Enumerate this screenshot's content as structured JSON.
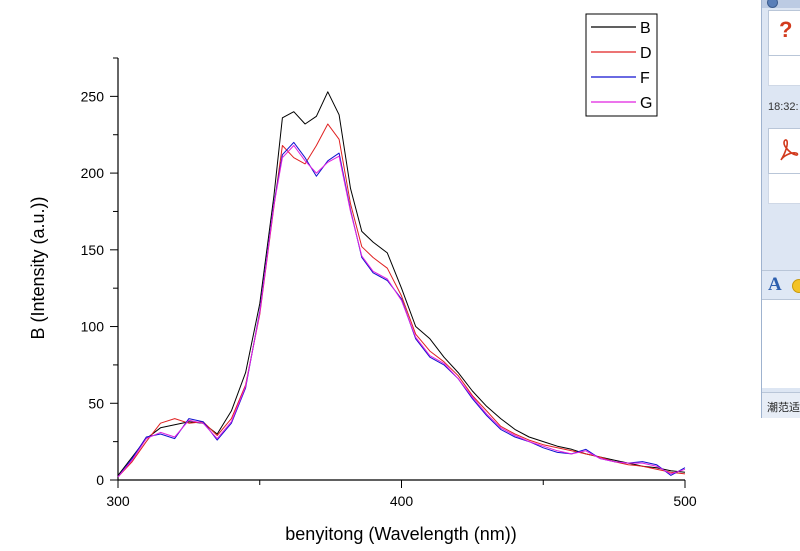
{
  "chart_data": {
    "type": "line",
    "xlabel": "benyitong (Wavelength (nm))",
    "ylabel": "B (Intensity (a.u.))",
    "xlim": [
      300,
      500
    ],
    "ylim": [
      0,
      275
    ],
    "x_ticks": [
      300,
      400,
      500
    ],
    "y_ticks": [
      0,
      50,
      100,
      150,
      200,
      250
    ],
    "grid": false,
    "legend_position": "top-right",
    "series": [
      {
        "name": "B",
        "color": "#000000",
        "x": [
          300,
          305,
          310,
          315,
          320,
          325,
          330,
          335,
          340,
          345,
          350,
          355,
          358,
          362,
          366,
          370,
          374,
          378,
          382,
          386,
          390,
          395,
          400,
          405,
          410,
          415,
          420,
          425,
          430,
          435,
          440,
          445,
          450,
          455,
          460,
          465,
          470,
          475,
          480,
          485,
          490,
          495,
          500
        ],
        "y": [
          3,
          15,
          27,
          34,
          36,
          38,
          37,
          30,
          45,
          70,
          115,
          185,
          236,
          240,
          232,
          237,
          253,
          238,
          190,
          162,
          155,
          148,
          125,
          100,
          92,
          80,
          70,
          58,
          48,
          40,
          33,
          28,
          25,
          22,
          20,
          17,
          15,
          13,
          11,
          9,
          8,
          6,
          5
        ]
      },
      {
        "name": "D",
        "color": "#e02020",
        "x": [
          300,
          305,
          310,
          315,
          320,
          325,
          330,
          335,
          340,
          345,
          350,
          355,
          358,
          362,
          366,
          370,
          374,
          378,
          382,
          386,
          390,
          395,
          400,
          405,
          410,
          415,
          420,
          425,
          430,
          435,
          440,
          445,
          450,
          455,
          460,
          465,
          470,
          475,
          480,
          485,
          490,
          495,
          500
        ],
        "y": [
          2,
          12,
          25,
          37,
          40,
          37,
          38,
          29,
          40,
          62,
          108,
          178,
          218,
          210,
          206,
          218,
          232,
          222,
          180,
          152,
          145,
          138,
          120,
          95,
          84,
          77,
          68,
          55,
          45,
          35,
          30,
          26,
          23,
          21,
          19,
          17,
          15,
          12,
          10,
          9,
          7,
          5,
          4
        ]
      },
      {
        "name": "F",
        "color": "#1010d0",
        "x": [
          300,
          305,
          310,
          315,
          320,
          325,
          330,
          335,
          340,
          345,
          350,
          355,
          358,
          362,
          366,
          370,
          374,
          378,
          382,
          386,
          390,
          395,
          400,
          405,
          410,
          415,
          420,
          425,
          430,
          435,
          440,
          445,
          450,
          455,
          460,
          465,
          470,
          475,
          480,
          485,
          490,
          495,
          500
        ],
        "y": [
          2,
          14,
          28,
          30,
          27,
          40,
          38,
          26,
          37,
          60,
          110,
          180,
          212,
          220,
          210,
          198,
          208,
          213,
          176,
          145,
          135,
          130,
          118,
          92,
          80,
          75,
          66,
          53,
          42,
          33,
          28,
          25,
          21,
          18,
          17,
          20,
          14,
          12,
          11,
          12,
          10,
          3,
          8
        ]
      },
      {
        "name": "G",
        "color": "#e020e0",
        "x": [
          300,
          305,
          310,
          315,
          320,
          325,
          330,
          335,
          340,
          345,
          350,
          355,
          358,
          362,
          366,
          370,
          374,
          378,
          382,
          386,
          390,
          395,
          400,
          405,
          410,
          415,
          420,
          425,
          430,
          435,
          440,
          445,
          450,
          455,
          460,
          465,
          470,
          475,
          480,
          485,
          490,
          495,
          500
        ],
        "y": [
          2,
          13,
          27,
          31,
          28,
          39,
          37,
          27,
          38,
          61,
          109,
          179,
          210,
          218,
          208,
          200,
          207,
          211,
          175,
          146,
          136,
          131,
          117,
          93,
          81,
          76,
          66,
          54,
          43,
          34,
          29,
          25,
          22,
          19,
          17,
          19,
          14,
          12,
          11,
          11,
          9,
          4,
          7
        ]
      }
    ]
  },
  "side_panel": {
    "time": "18:32:",
    "footer_text": "潮范适",
    "icons": [
      "help-icon",
      "pdf-file-icon",
      "font-icon",
      "emoticon-icon"
    ],
    "help_glyph": "?",
    "font_glyph": "A"
  }
}
